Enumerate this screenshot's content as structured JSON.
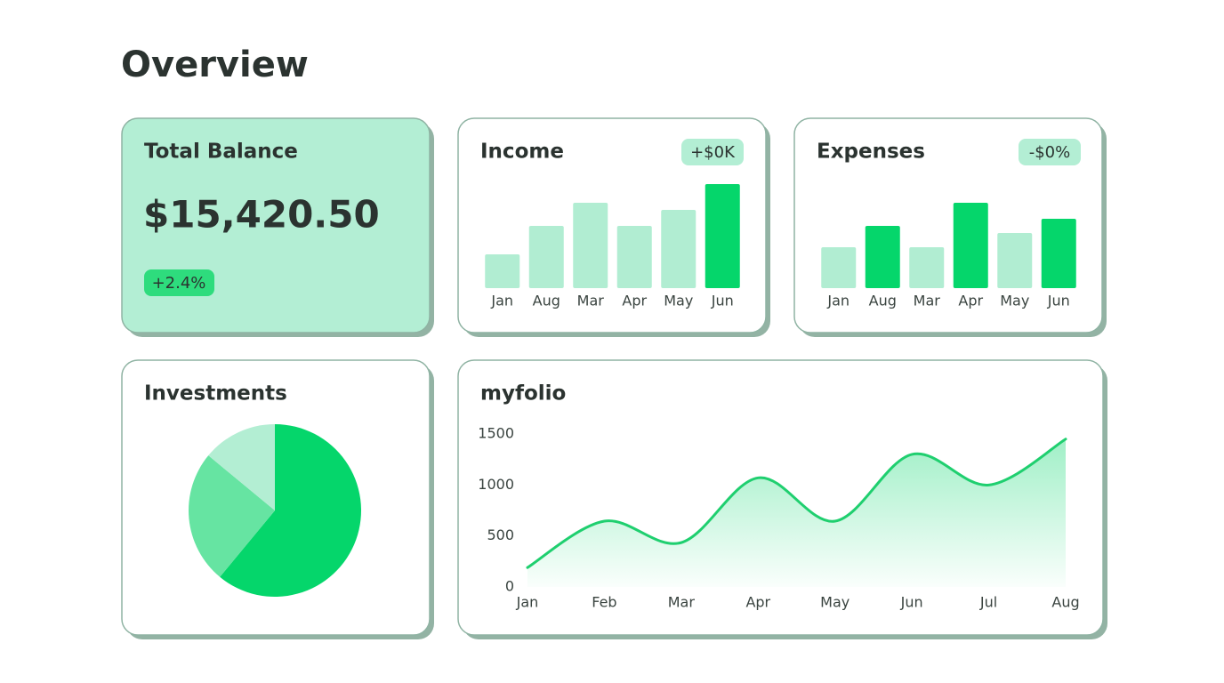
{
  "header": {
    "title": "Overview"
  },
  "balance": {
    "title": "Total Balance",
    "amount": "$15,420.50",
    "change": "+2.4%"
  },
  "chart_data": [
    {
      "type": "bar",
      "title": "Income",
      "annotation": "+$0K",
      "categories": [
        "Jan",
        "Aug",
        "Mar",
        "Apr",
        "May",
        "Jun"
      ],
      "values": [
        38,
        70,
        96,
        70,
        88,
        117
      ],
      "colors": [
        "#b1edd2",
        "#b1edd2",
        "#b1edd2",
        "#b1edd2",
        "#b1edd2",
        "#05d66b"
      ],
      "ylim": [
        0,
        120
      ]
    },
    {
      "type": "bar",
      "title": "Expenses",
      "annotation": "-$0%",
      "categories": [
        "Jan",
        "Aug",
        "Mar",
        "Apr",
        "May",
        "Jun"
      ],
      "values": [
        46,
        70,
        46,
        96,
        62,
        78
      ],
      "colors": [
        "#b1edd2",
        "#05d66b",
        "#b1edd2",
        "#05d66b",
        "#b1edd2",
        "#05d66b"
      ],
      "ylim": [
        0,
        120
      ]
    },
    {
      "type": "pie",
      "title": "Investments",
      "values": [
        61,
        25,
        14
      ],
      "colors": [
        "#05d66b",
        "#66e4a2",
        "#b3eed3"
      ]
    },
    {
      "type": "line",
      "title": "myfolio",
      "categories": [
        "Jan",
        "Feb",
        "Mar",
        "Apr",
        "May",
        "Jun",
        "Jul",
        "Aug"
      ],
      "values": [
        190,
        645,
        435,
        1070,
        645,
        1300,
        1000,
        1450
      ],
      "color": "#1fcf6f",
      "ylim": [
        0,
        1500
      ],
      "yticks": [
        0,
        500,
        1000,
        1500
      ]
    }
  ]
}
